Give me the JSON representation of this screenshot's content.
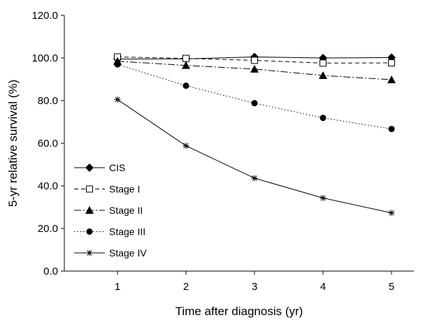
{
  "chart_data": {
    "type": "line",
    "xlabel": "Time after diagnosis (yr)",
    "ylabel": "5-yr relative survival (%)",
    "x": [
      1,
      2,
      3,
      4,
      5
    ],
    "x_tick_labels": [
      "1",
      "2",
      "3",
      "4",
      "5"
    ],
    "y_tick_labels": [
      "0.0",
      "20.0",
      "40.0",
      "60.0",
      "80.0",
      "100.0",
      "120.0"
    ],
    "ylim": [
      0,
      120
    ],
    "grid": false,
    "legend_position": "center-left",
    "series": [
      {
        "name": "CIS",
        "marker": "diamond",
        "marker_fill": "filled",
        "line_style": "solid",
        "values": [
          99.5,
          99.6,
          100.5,
          100.0,
          100.2
        ]
      },
      {
        "name": "Stage I",
        "marker": "square",
        "marker_fill": "open",
        "line_style": "dashed",
        "values": [
          100.5,
          99.8,
          98.9,
          97.6,
          97.7
        ]
      },
      {
        "name": "Stage II",
        "marker": "triangle",
        "marker_fill": "filled",
        "line_style": "dash-dot",
        "values": [
          98.5,
          96.5,
          94.8,
          91.8,
          89.8
        ]
      },
      {
        "name": "Stage III",
        "marker": "circle",
        "marker_fill": "filled",
        "line_style": "dotted",
        "values": [
          97.0,
          87.0,
          78.8,
          71.9,
          66.7
        ]
      },
      {
        "name": "Stage IV",
        "marker": "asterisk",
        "marker_fill": "none",
        "line_style": "solid",
        "values": [
          80.5,
          58.8,
          43.6,
          34.3,
          27.3
        ]
      }
    ]
  }
}
